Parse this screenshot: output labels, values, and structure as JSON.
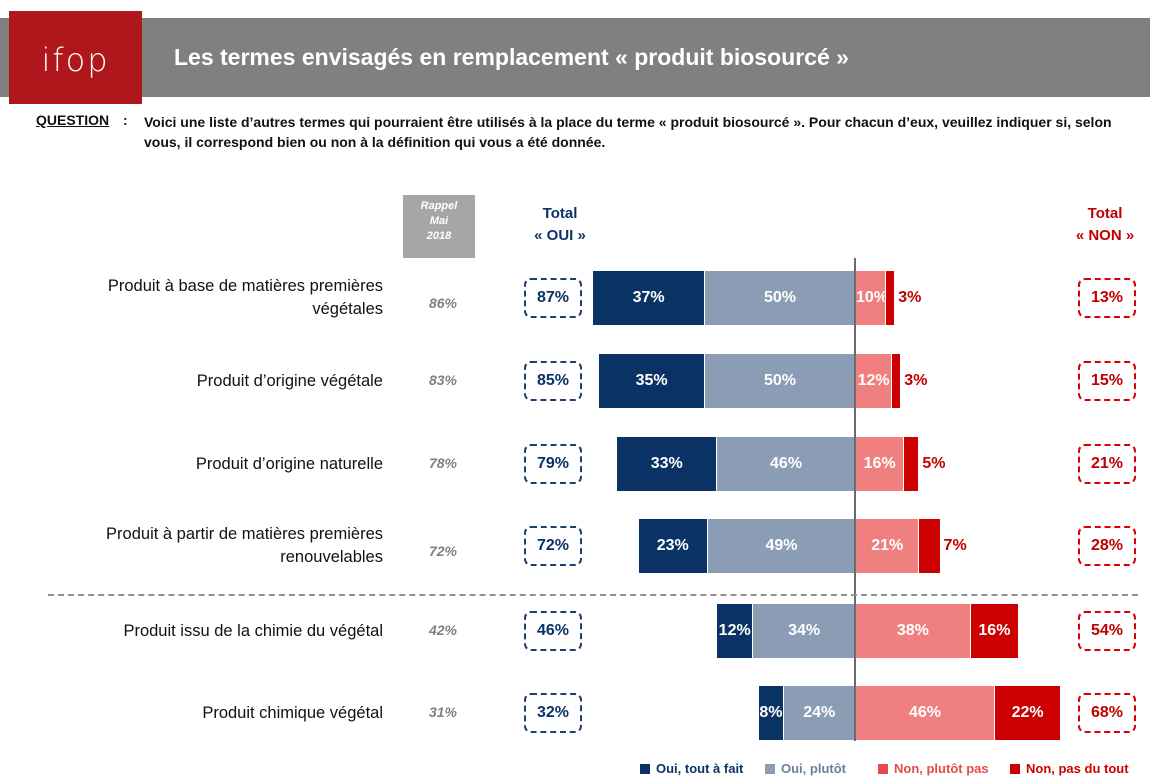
{
  "header": {
    "logo_text": "ifop",
    "title": "Les termes envisagés en remplacement « produit biosourcé »"
  },
  "question": {
    "label": "QUESTION",
    "colon": ":",
    "text": "Voici une liste d’autres termes qui pourraient être utilisés à la place du terme « produit biosourcé ». Pour chacun d’eux, veuillez indiquer si, selon vous, il correspond bien ou non à la définition qui vous a été donnée."
  },
  "columns": {
    "rappel_line1": "Rappel",
    "rappel_line2": "Mai",
    "rappel_line3": "2018",
    "total_oui_line1": "Total",
    "total_oui_line2": "« OUI »",
    "total_non_line1": "Total",
    "total_non_line2": "« NON »"
  },
  "colors": {
    "oui_tout_a_fait": "#0b3264",
    "oui_plutot": "#8a9db5",
    "non_plutot_pas": "#f08080",
    "non_pas_du_tout": "#cc0000"
  },
  "chart_data": {
    "type": "bar",
    "subtype": "diverging-stacked-horizontal",
    "title": "Les termes envisagés en remplacement « produit biosourcé »",
    "categories": [
      "Produit à base de matières premières végétales",
      "Produit d’origine végétale",
      "Produit d’origine naturelle",
      "Produit à partir de matières premières renouvelables",
      "Produit issu de la chimie du végétal",
      "Produit chimique végétal"
    ],
    "series": [
      {
        "name": "Oui, tout à fait",
        "values": [
          37,
          35,
          33,
          23,
          12,
          8
        ]
      },
      {
        "name": "Oui, plutôt",
        "values": [
          50,
          50,
          46,
          49,
          34,
          24
        ]
      },
      {
        "name": "Non, plutôt pas",
        "values": [
          10,
          12,
          16,
          21,
          38,
          46
        ]
      },
      {
        "name": "Non, pas du tout",
        "values": [
          3,
          3,
          5,
          7,
          16,
          22
        ]
      }
    ],
    "value_labels": [
      [
        "37%",
        "50%",
        "10%",
        "3%"
      ],
      [
        "35%",
        "50%",
        "12%",
        "3%"
      ],
      [
        "33%",
        "46%",
        "16%",
        "5%"
      ],
      [
        "23%",
        "49%",
        "21%",
        "7%"
      ],
      [
        "12%",
        "34%",
        "38%",
        "16%"
      ],
      [
        "8%",
        "24%",
        "46%",
        "22%"
      ]
    ],
    "total_oui": [
      "87%",
      "85%",
      "79%",
      "72%",
      "46%",
      "32%"
    ],
    "total_non": [
      "13%",
      "15%",
      "21%",
      "28%",
      "54%",
      "68%"
    ],
    "rappel_mai_2018": [
      "86%",
      "83%",
      "78%",
      "72%",
      "42%",
      "31%"
    ],
    "row_labels": [
      [
        "Produit à base de matières premières",
        "végétales"
      ],
      [
        "Produit d’origine végétale"
      ],
      [
        "Produit d’origine naturelle"
      ],
      [
        "Produit à partir de matières premières",
        "renouvelables"
      ],
      [
        "Produit issu de la chimie du végétal"
      ],
      [
        "Produit chimique végétal"
      ]
    ],
    "separator_after_row": 4,
    "legend": [
      "Oui, tout à fait",
      "Oui, plutôt",
      "Non, plutôt pas",
      "Non, pas du tout"
    ],
    "legend_position": "bottom-right",
    "xlabel": "",
    "ylabel": ""
  }
}
